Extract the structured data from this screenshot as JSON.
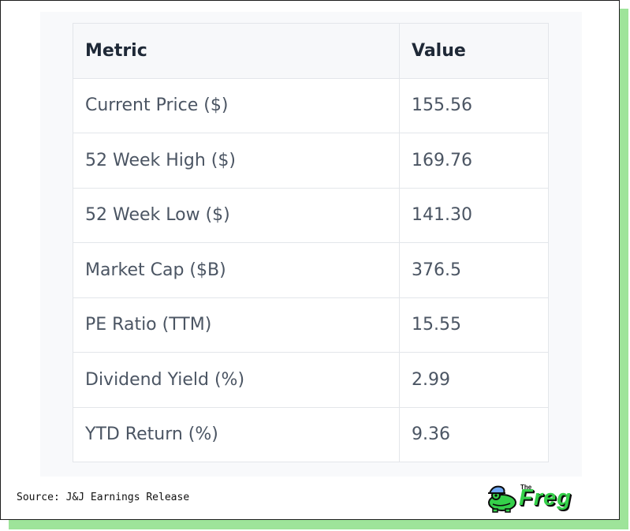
{
  "table": {
    "headers": [
      "Metric",
      "Value"
    ],
    "rows": [
      [
        "Current Price ($)",
        "155.56"
      ],
      [
        "52 Week High ($)",
        "169.76"
      ],
      [
        "52 Week Low ($)",
        "141.30"
      ],
      [
        "Market Cap ($B)",
        "376.5"
      ],
      [
        "PE Ratio (TTM)",
        "15.55"
      ],
      [
        "Dividend Yield (%)",
        "2.99"
      ],
      [
        "YTD Return (%)",
        "9.36"
      ]
    ]
  },
  "footer": {
    "source": "Source: J&J Earnings Release",
    "logo_small": "The",
    "logo_word": "Freg",
    "logo_icon": "frog-with-cap-icon"
  },
  "colors": {
    "accent_green": "#35d04a",
    "shadow_green": "#9ee49a",
    "cap_blue": "#6fa8f5"
  }
}
